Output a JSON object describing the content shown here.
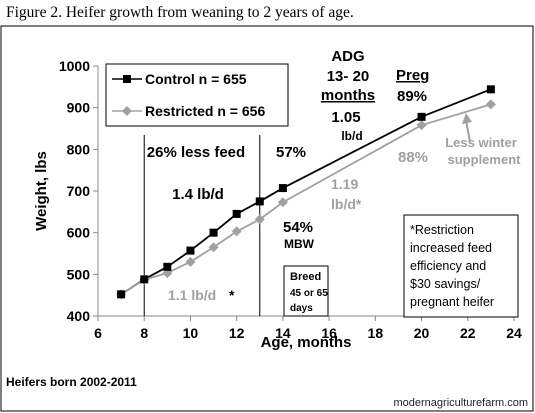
{
  "caption": "Figure  2. Heifer  growth  from  weaning  to  2 years  of  age.",
  "footnote": "Heifers born 2002-2011",
  "watermark": "modernagriculturefarm.com",
  "chart_data": {
    "type": "line",
    "title": "",
    "xlabel": "Age, months",
    "ylabel": "Weight, lbs",
    "xlim": [
      6,
      24
    ],
    "ylim": [
      400,
      1000
    ],
    "xticks": [
      6,
      8,
      10,
      12,
      14,
      16,
      18,
      20,
      22,
      24
    ],
    "yticks": [
      400,
      500,
      600,
      700,
      800,
      900,
      1000
    ],
    "grid": false,
    "legend_position": "top-left",
    "series": [
      {
        "name": "Control n = 655",
        "color": "#000000",
        "marker": "square",
        "x": [
          7,
          8,
          9,
          10,
          11,
          12,
          13,
          14,
          20,
          23
        ],
        "y": [
          452,
          488,
          518,
          557,
          600,
          645,
          675,
          707,
          878,
          944
        ]
      },
      {
        "name": "Restricted n = 656",
        "color": "#a0a0a0",
        "marker": "diamond",
        "x": [
          7,
          8,
          9,
          10,
          11,
          12,
          13,
          14,
          20,
          23
        ],
        "y": [
          452,
          487,
          503,
          530,
          565,
          603,
          632,
          673,
          858,
          908
        ]
      }
    ],
    "vlines": [
      8,
      13
    ],
    "annotations": {
      "adg_title": "ADG",
      "adg_range": "13- 20",
      "adg_months": "months",
      "adg_value": "1.05",
      "adg_unit": "lb/d",
      "preg_label": "Preg",
      "preg_control": "89%",
      "preg_restricted": "88%",
      "less_winter_1": "Less winter",
      "less_winter_2": "supplement",
      "less_feed": "26% less feed",
      "control_adg": "1.4 lb/d",
      "restricted_adg": "1.1 lb/d",
      "restricted_adg_mark": "*",
      "pct_57": "57%",
      "pct_54": "54%",
      "mbw": "MBW",
      "late_adg_1": "1.19",
      "late_adg_2": "lb/d*",
      "breed_1": "Breed",
      "breed_2": "45 or 65",
      "breed_3": "days",
      "note_lines": [
        "*Restriction",
        "increased feed",
        "efficiency and",
        "$30 savings/",
        "pregnant heifer"
      ]
    }
  }
}
